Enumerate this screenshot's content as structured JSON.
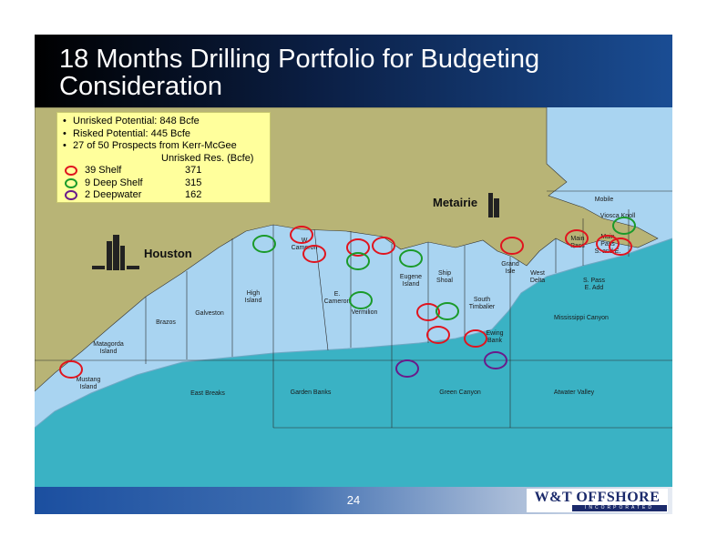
{
  "header": {
    "title": "18 Months Drilling Portfolio for Budgeting Consideration"
  },
  "legend": {
    "bullets": [
      "Unrisked Potential: 848 Bcfe",
      "Risked Potential: 445 Bcfe",
      "27 of 50 Prospects from Kerr-McGee"
    ],
    "column_header": "Unrisked Res. (Bcfe)",
    "rows": [
      {
        "label": "39 Shelf",
        "value": "371"
      },
      {
        "label": "9 Deep Shelf",
        "value": "315"
      },
      {
        "label": "2 Deepwater",
        "value": "162"
      }
    ]
  },
  "map": {
    "cities": [
      "Metairie",
      "Houston"
    ],
    "areas": [
      [
        "Mobile"
      ],
      [
        "Viosca Knoll"
      ],
      [
        "Main",
        "Pass"
      ],
      [
        "Main",
        "Pass",
        "S. and E."
      ],
      [
        "Grand",
        "Isle"
      ],
      [
        "West",
        "Delta"
      ],
      [
        "S. Pass",
        "E. Add"
      ],
      [
        "Mississippi Canyon"
      ],
      [
        "South",
        "Timbalier"
      ],
      [
        "Ewing",
        "Bank"
      ],
      [
        "Ship",
        "Shoal"
      ],
      [
        "Eugene",
        "Island"
      ],
      [
        "Vermilion"
      ],
      [
        "E.",
        "Cameron"
      ],
      [
        "W",
        "Cameron"
      ],
      [
        "High",
        "Island"
      ],
      [
        "Galveston"
      ],
      [
        "Brazos"
      ],
      [
        "Matagorda",
        "Island"
      ],
      [
        "Mustang",
        "Island"
      ],
      [
        "East Breaks"
      ],
      [
        "Garden Banks"
      ],
      [
        "Green Canyon"
      ],
      [
        "Atwater Valley"
      ]
    ]
  },
  "footer": {
    "page": "24",
    "logo": "W&T OFFSHORE",
    "logo_sub": "INCORPORATED"
  }
}
